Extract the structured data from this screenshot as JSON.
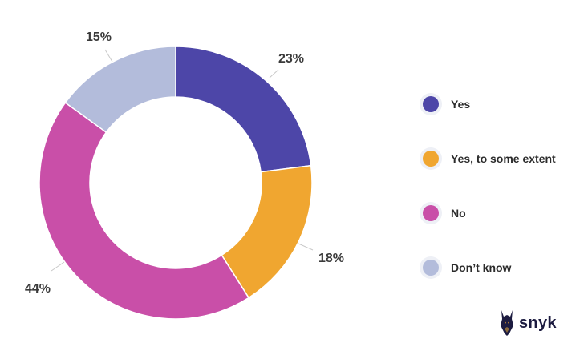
{
  "chart_data": {
    "type": "pie",
    "donut": true,
    "categories": [
      "Yes",
      "Yes, to some extent",
      "No",
      "Don’t know"
    ],
    "values": [
      23,
      18,
      44,
      15
    ],
    "labels": [
      "23%",
      "18%",
      "44%",
      "15%"
    ],
    "colors": [
      "#4d46a8",
      "#f0a630",
      "#c94fa8",
      "#b3bcdb"
    ],
    "legend_position": "right"
  },
  "legend": [
    {
      "label": "Yes",
      "color": "#4d46a8"
    },
    {
      "label": "Yes, to some extent",
      "color": "#f0a630"
    },
    {
      "label": "No",
      "color": "#c94fa8"
    },
    {
      "label": "Don’t know",
      "color": "#b3bcdb"
    }
  ],
  "brand": {
    "name": "snyk",
    "logo_icon": "doberman-dog-icon"
  }
}
